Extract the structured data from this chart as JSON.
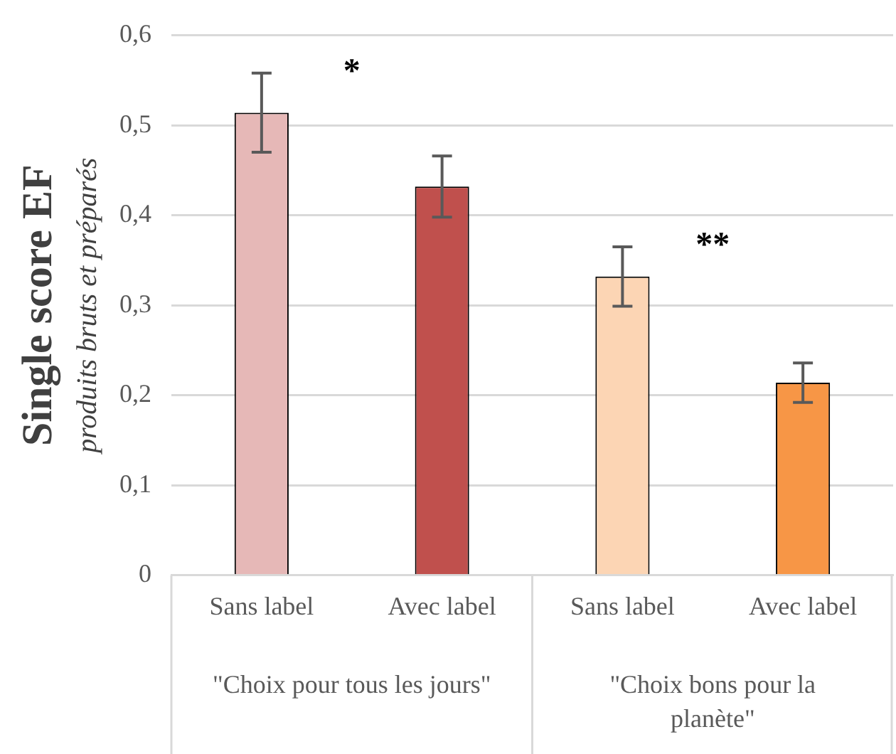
{
  "chart_data": {
    "type": "bar",
    "ylabel": "Single score EF",
    "subtitle": "produits bruts et préparés",
    "categories": [
      "Sans label",
      "Avec label",
      "Sans label",
      "Avec label"
    ],
    "values": [
      0.514,
      0.432,
      0.332,
      0.214
    ],
    "errors": [
      0.044,
      0.034,
      0.033,
      0.022
    ],
    "colors": [
      "#e6b8b7",
      "#c0504d",
      "#fcd5b4",
      "#f79646"
    ],
    "ylim": [
      0,
      0.6
    ],
    "yticks": [
      0,
      {
        "value": 0.1,
        "label": "0,1"
      },
      {
        "value": 0.2,
        "label": "0,2"
      },
      {
        "value": 0.3,
        "label": "0,3"
      },
      {
        "value": 0.4,
        "label": "0,4"
      },
      {
        "value": 0.5,
        "label": "0,5"
      },
      {
        "value": 0.6,
        "label": "0,6"
      }
    ],
    "grid": "y",
    "annotations": [
      "*",
      "**",
      "\"Choix pour tous les jours\"",
      "\"Choix bons pour la planète\""
    ]
  }
}
